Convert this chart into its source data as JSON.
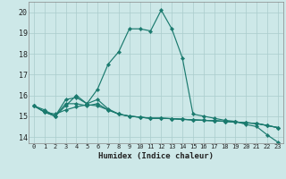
{
  "xlabel": "Humidex (Indice chaleur)",
  "background_color": "#cde8e8",
  "grid_color": "#aacccc",
  "line_color": "#1a7a6e",
  "xlim": [
    -0.5,
    23.5
  ],
  "ylim": [
    13.7,
    20.5
  ],
  "xticks": [
    0,
    1,
    2,
    3,
    4,
    5,
    6,
    7,
    8,
    9,
    10,
    11,
    12,
    13,
    14,
    15,
    16,
    17,
    18,
    19,
    20,
    21,
    22,
    23
  ],
  "yticks": [
    14,
    15,
    16,
    17,
    18,
    19,
    20
  ],
  "series": [
    [
      15.5,
      15.2,
      15.0,
      15.6,
      15.6,
      15.5,
      15.6,
      15.3,
      15.1,
      15.0,
      14.95,
      14.9,
      14.9,
      14.88,
      14.85,
      14.82,
      14.8,
      14.78,
      14.75,
      14.72,
      14.68,
      14.65,
      14.55,
      14.45
    ],
    [
      15.5,
      15.2,
      15.0,
      15.8,
      15.9,
      15.6,
      16.3,
      17.5,
      18.1,
      19.2,
      19.2,
      19.1,
      20.1,
      19.2,
      17.8,
      15.1,
      15.0,
      14.9,
      14.8,
      14.75,
      14.6,
      14.5,
      14.1,
      13.75
    ],
    [
      15.5,
      15.3,
      15.0,
      15.5,
      16.0,
      15.6,
      15.8,
      15.35,
      15.1,
      15.0,
      14.95,
      14.9,
      14.9,
      14.88,
      14.85,
      14.82,
      14.8,
      14.78,
      14.75,
      14.72,
      14.68,
      14.65,
      14.55,
      14.45
    ],
    [
      15.5,
      15.2,
      15.1,
      15.3,
      15.45,
      15.55,
      15.5,
      15.3,
      15.1,
      15.0,
      14.95,
      14.9,
      14.9,
      14.88,
      14.85,
      14.82,
      14.8,
      14.78,
      14.75,
      14.72,
      14.68,
      14.65,
      14.55,
      14.45
    ]
  ]
}
